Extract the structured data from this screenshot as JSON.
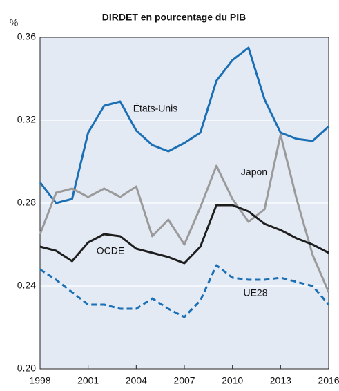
{
  "chart_data": {
    "type": "line",
    "title": "DIRDET en pourcentage du PIB",
    "y_label": "%",
    "x": [
      1998,
      1999,
      2000,
      2001,
      2002,
      2003,
      2004,
      2005,
      2006,
      2007,
      2008,
      2009,
      2010,
      2011,
      2012,
      2013,
      2014,
      2015,
      2016
    ],
    "xlim": [
      1998,
      2016
    ],
    "xticks": [
      1998,
      2001,
      2004,
      2007,
      2010,
      2013,
      2016
    ],
    "ylim": [
      0.2,
      0.36
    ],
    "yticks": [
      {
        "value": 0.2,
        "label": "0.20"
      },
      0.24,
      0.28,
      0.32,
      0.36
    ],
    "grid": true,
    "series": [
      {
        "name": "États-Unis",
        "color": "#1a6fb5",
        "dash": false,
        "values": [
          0.29,
          0.28,
          0.282,
          0.314,
          0.327,
          0.329,
          0.315,
          0.308,
          0.305,
          0.309,
          0.314,
          0.339,
          0.349,
          0.355,
          0.33,
          0.314,
          0.311,
          0.31,
          0.317
        ]
      },
      {
        "name": "Japon",
        "color": "#9a9a9a",
        "dash": false,
        "values": [
          0.265,
          0.285,
          0.287,
          0.283,
          0.287,
          0.283,
          0.288,
          0.264,
          0.272,
          0.26,
          0.278,
          0.298,
          0.282,
          0.271,
          0.277,
          0.313,
          0.282,
          0.255,
          0.237
        ]
      },
      {
        "name": "OCDE",
        "color": "#1e1e1e",
        "dash": false,
        "values": [
          0.259,
          0.257,
          0.252,
          0.261,
          0.265,
          0.264,
          0.258,
          0.256,
          0.254,
          0.251,
          0.259,
          0.279,
          0.279,
          0.276,
          0.27,
          0.267,
          0.263,
          0.26,
          0.256
        ]
      },
      {
        "name": "UE28",
        "color": "#1a6fb5",
        "dash": true,
        "values": [
          0.248,
          0.243,
          0.237,
          0.231,
          0.231,
          0.229,
          0.229,
          0.234,
          0.229,
          0.225,
          0.233,
          0.25,
          0.244,
          0.243,
          0.243,
          0.244,
          0.242,
          0.24,
          0.231
        ]
      }
    ]
  }
}
